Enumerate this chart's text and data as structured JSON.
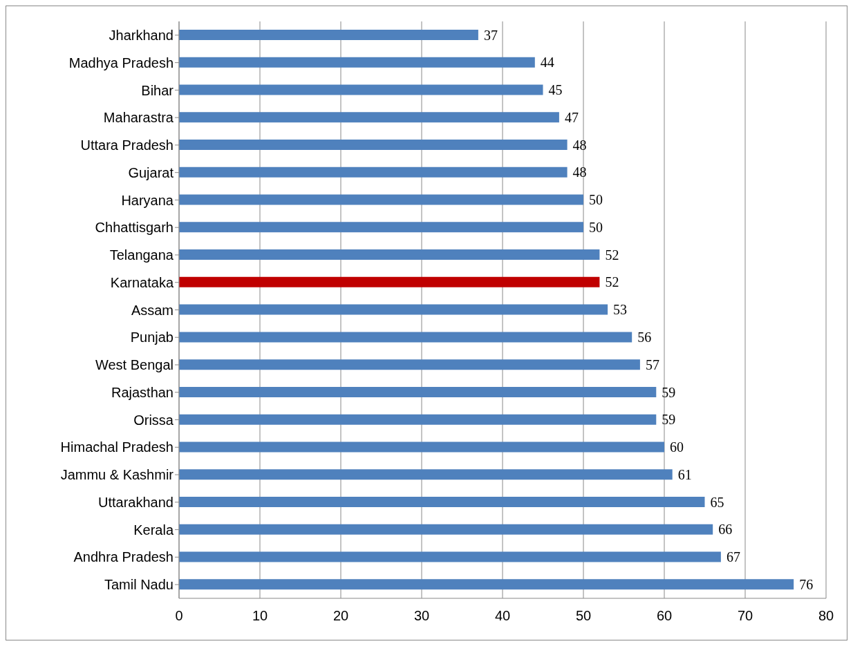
{
  "chart_data": {
    "type": "bar",
    "orientation": "horizontal",
    "categories": [
      "Jharkhand",
      "Madhya Pradesh",
      "Bihar",
      "Maharastra",
      "Uttara Pradesh",
      "Gujarat",
      "Haryana",
      "Chhattisgarh",
      "Telangana",
      "Karnataka",
      "Assam",
      "Punjab",
      "West Bengal",
      "Rajasthan",
      "Orissa",
      "Himachal Pradesh",
      "Jammu & Kashmir",
      "Uttarakhand",
      "Kerala",
      "Andhra Pradesh",
      "Tamil Nadu"
    ],
    "values": [
      37,
      44,
      45,
      47,
      48,
      48,
      50,
      50,
      52,
      52,
      53,
      56,
      57,
      59,
      59,
      60,
      61,
      65,
      66,
      67,
      76
    ],
    "colors": [
      "#4f81bd",
      "#4f81bd",
      "#4f81bd",
      "#4f81bd",
      "#4f81bd",
      "#4f81bd",
      "#4f81bd",
      "#4f81bd",
      "#4f81bd",
      "#c00000",
      "#4f81bd",
      "#4f81bd",
      "#4f81bd",
      "#4f81bd",
      "#4f81bd",
      "#4f81bd",
      "#4f81bd",
      "#4f81bd",
      "#4f81bd",
      "#4f81bd",
      "#4f81bd"
    ],
    "xlim": [
      0,
      80
    ],
    "xticks": [
      0,
      10,
      20,
      30,
      40,
      50,
      60,
      70,
      80
    ],
    "grid": "x",
    "data_labels": true
  }
}
